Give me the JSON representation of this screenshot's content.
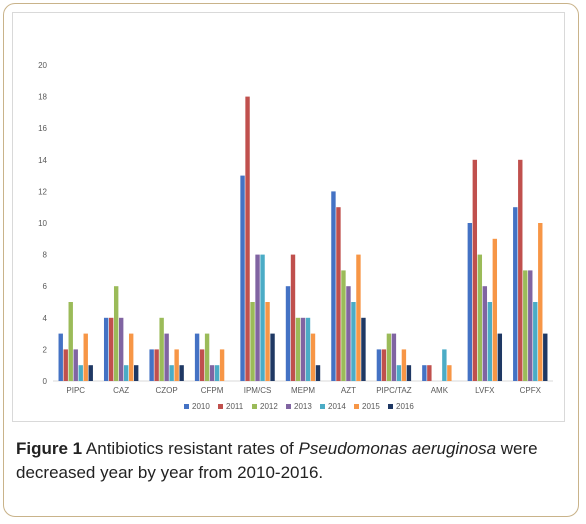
{
  "chart_data": {
    "type": "bar",
    "categories": [
      "PIPC",
      "CAZ",
      "CZOP",
      "CFPM",
      "IPM/CS",
      "MEPM",
      "AZT",
      "PIPC/TAZ",
      "AMK",
      "LVFX",
      "CPFX"
    ],
    "series": [
      {
        "name": "2010",
        "color": "#4472c4",
        "values": [
          3,
          4,
          2,
          3,
          13,
          6,
          12,
          2,
          1,
          10,
          11
        ]
      },
      {
        "name": "2011",
        "color": "#c0504d",
        "values": [
          2,
          4,
          2,
          2,
          18,
          8,
          11,
          2,
          1,
          14,
          14
        ]
      },
      {
        "name": "2012",
        "color": "#9bbb59",
        "values": [
          5,
          6,
          4,
          3,
          5,
          4,
          7,
          3,
          0,
          8,
          7
        ]
      },
      {
        "name": "2013",
        "color": "#8064a2",
        "values": [
          2,
          4,
          3,
          1,
          8,
          4,
          6,
          3,
          0,
          6,
          7
        ]
      },
      {
        "name": "2014",
        "color": "#4bacc6",
        "values": [
          1,
          1,
          1,
          1,
          8,
          4,
          5,
          1,
          2,
          5,
          5
        ]
      },
      {
        "name": "2015",
        "color": "#f79646",
        "values": [
          3,
          3,
          2,
          2,
          5,
          3,
          8,
          2,
          1,
          9,
          10
        ]
      },
      {
        "name": "2016",
        "color": "#1f3864",
        "values": [
          1,
          1,
          1,
          0,
          3,
          1,
          4,
          1,
          0,
          3,
          3
        ]
      }
    ],
    "ylim": [
      0,
      20
    ],
    "yticks": [
      0,
      2,
      4,
      6,
      8,
      10,
      12,
      14,
      16,
      18,
      20
    ],
    "grid": false,
    "legend_position": "bottom"
  },
  "caption": {
    "label": "Figure 1",
    "text_before": " Antibiotics resistant rates of ",
    "species": "Pseudomonas aeruginosa",
    "text_after": " were decreased year by year from 2010-2016."
  }
}
